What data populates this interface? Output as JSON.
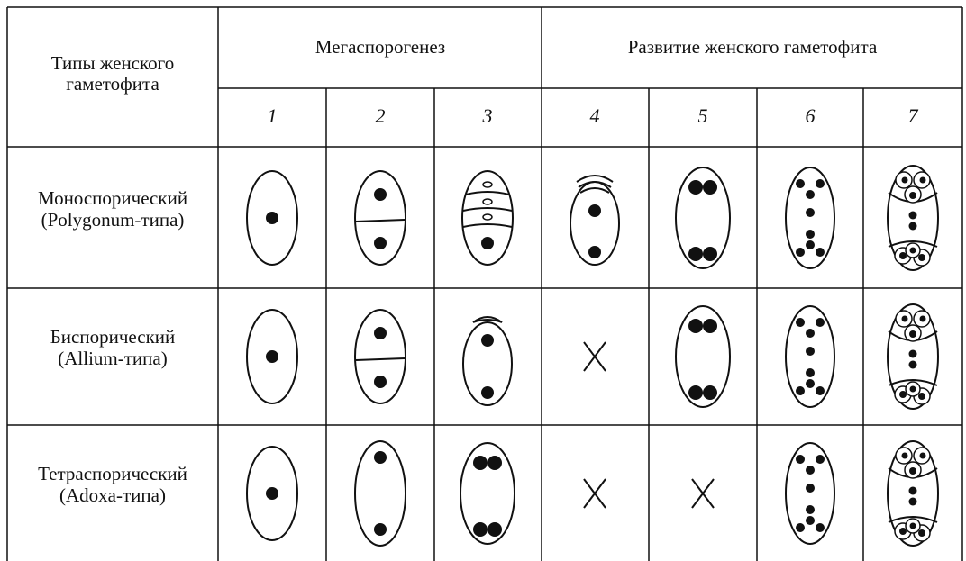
{
  "table": {
    "header": {
      "row_label": [
        "Типы женского",
        "гаметофита"
      ],
      "groups": [
        "Мегаспорогенез",
        "Развитие женского гаметофита"
      ],
      "columns": [
        "1",
        "2",
        "3",
        "4",
        "5",
        "6",
        "7"
      ]
    },
    "rows": [
      {
        "label": [
          "Моноспорический",
          "(Polygonum-типа)"
        ]
      },
      {
        "label": [
          "Биспорический",
          "(Allium-типа)"
        ]
      },
      {
        "label": [
          "Тетраспорический",
          "(Adoxa-типа)"
        ]
      }
    ]
  }
}
